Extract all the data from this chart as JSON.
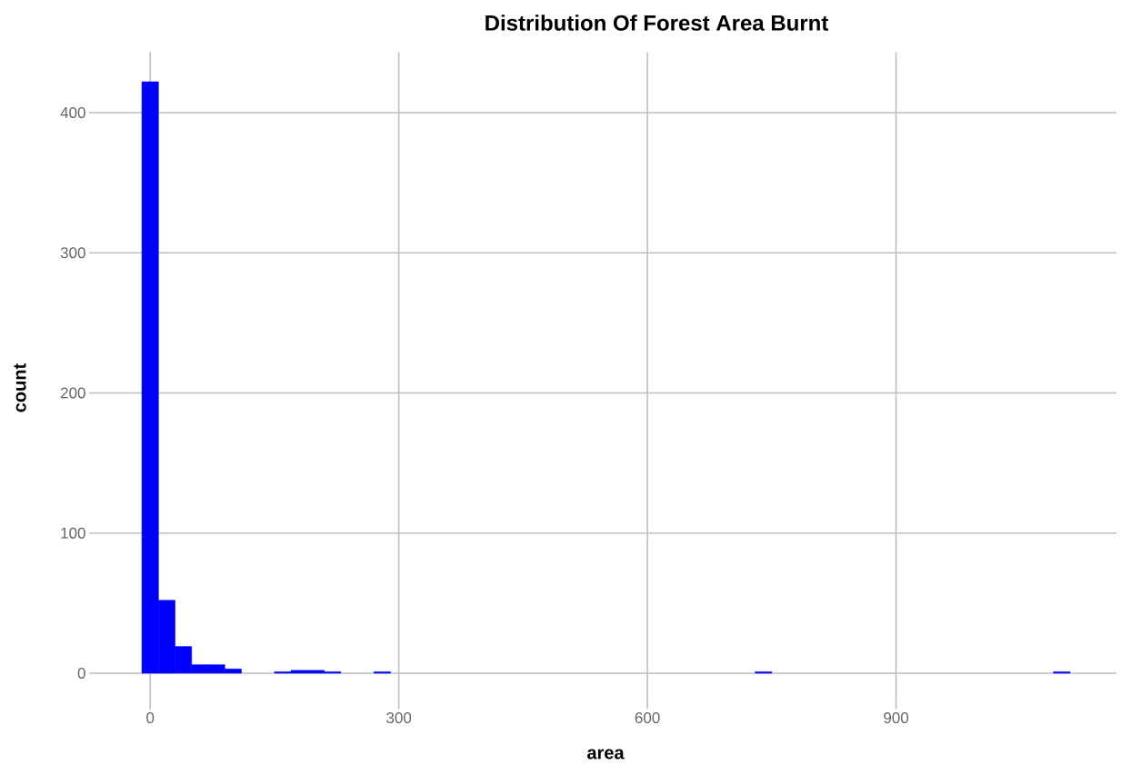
{
  "chart_data": {
    "type": "histogram",
    "title": "Distribution Of Forest Area Burnt",
    "xlabel": "area",
    "ylabel": "count",
    "bins": [
      -10,
      10,
      30,
      50,
      70,
      90,
      110,
      130,
      150,
      170,
      190,
      210,
      230,
      250,
      270,
      290,
      310,
      330,
      350,
      370,
      390,
      410,
      430,
      450,
      470,
      490,
      510,
      530,
      550,
      570,
      590,
      610,
      630,
      650,
      670,
      690,
      710,
      730,
      750,
      770,
      790,
      810,
      830,
      850,
      870,
      890,
      910,
      930,
      950,
      970,
      990,
      1010,
      1030,
      1050,
      1070,
      1090,
      1110
    ],
    "values": [
      422,
      52,
      19,
      6,
      6,
      3,
      0,
      0,
      1,
      2,
      2,
      1,
      0,
      0,
      1,
      0,
      0,
      0,
      0,
      0,
      0,
      0,
      0,
      0,
      0,
      0,
      0,
      0,
      0,
      0,
      0,
      0,
      0,
      0,
      0,
      0,
      0,
      1,
      0,
      0,
      0,
      0,
      0,
      0,
      0,
      0,
      0,
      0,
      0,
      0,
      0,
      0,
      0,
      0,
      0,
      1
    ],
    "color": "#0000ff",
    "xlim": [
      -66,
      1166
    ],
    "ylim": [
      -21.1,
      443.1
    ],
    "xticks": [
      0,
      300,
      600,
      900
    ],
    "yticks": [
      0,
      100,
      200,
      300,
      400
    ],
    "grid": true
  }
}
